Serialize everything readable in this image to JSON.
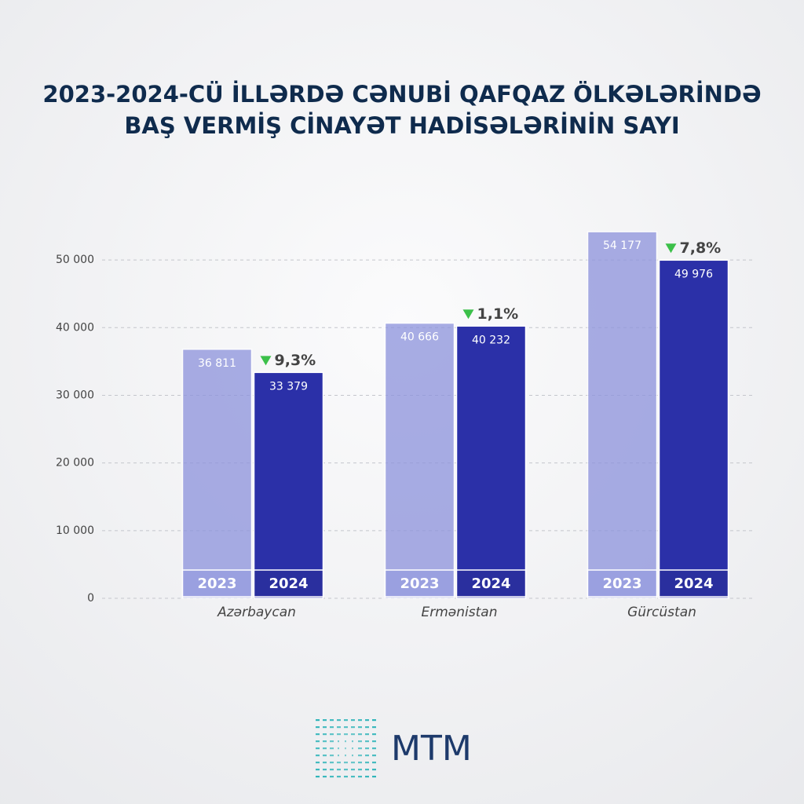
{
  "chart_data": {
    "type": "bar",
    "title": [
      "2023-2024-CÜ İLLƏRDƏ CƏNUBİ QAFQAZ ÖLKƏLƏRİNDƏ",
      "BAŞ VERMİŞ CİNAYƏT HADİSƏLƏRİNİN SAYI"
    ],
    "categories": [
      "Azərbaycan",
      "Ermənistan",
      "Gürcüstan"
    ],
    "series": [
      {
        "name": "2023",
        "color": "#8c92dc",
        "values": [
          36811,
          40666,
          54177
        ],
        "value_labels": [
          "36 811",
          "40 666",
          "54 177"
        ]
      },
      {
        "name": "2024",
        "color": "#2b30a8",
        "values": [
          33379,
          40232,
          49976
        ],
        "value_labels": [
          "33 379",
          "40 232",
          "49 976"
        ]
      }
    ],
    "annotations": [
      "9,3%",
      "1,1%",
      "7,8%"
    ],
    "ylim": [
      0,
      55000
    ],
    "yticks": [
      0,
      {
        "value": 10000,
        "label": "10 000"
      },
      {
        "value": 20000,
        "label": "20 000"
      },
      {
        "value": 30000,
        "label": "30 000"
      },
      {
        "value": 40000,
        "label": "40 000"
      },
      {
        "value": 50000,
        "label": "50 000"
      }
    ],
    "grid": true
  },
  "logo": "MTM"
}
